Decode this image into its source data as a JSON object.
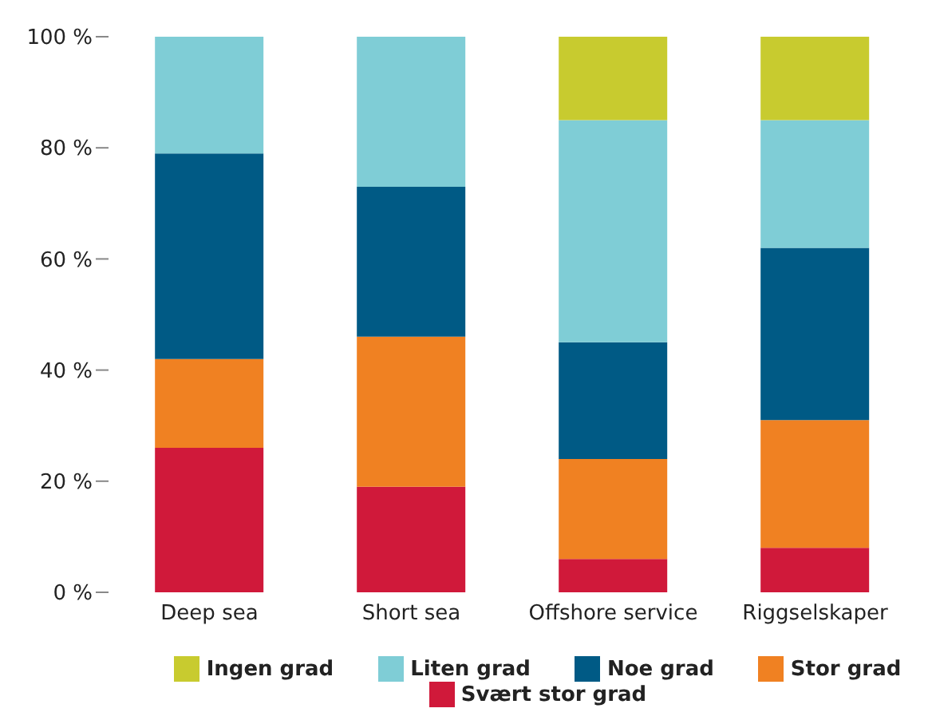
{
  "chart_data": {
    "type": "bar",
    "stacked": true,
    "categories": [
      "Deep sea",
      "Short sea",
      "Offshore service",
      "Riggselskaper"
    ],
    "series": [
      {
        "name": "Svært stor grad",
        "color": "#d0193a",
        "values": [
          26,
          19,
          6,
          8
        ]
      },
      {
        "name": "Stor grad",
        "color": "#f08122",
        "values": [
          16,
          27,
          18,
          23
        ]
      },
      {
        "name": "Noe grad",
        "color": "#005a85",
        "values": [
          37,
          27,
          21,
          31
        ]
      },
      {
        "name": "Liten grad",
        "color": "#7fcdd6",
        "values": [
          21,
          27,
          40,
          23
        ]
      },
      {
        "name": "Ingen grad",
        "color": "#c8cb2f",
        "values": [
          0,
          0,
          15,
          15
        ]
      }
    ],
    "ylim": [
      0,
      100
    ],
    "yticks": [
      {
        "value": 0,
        "label": "0 %"
      },
      {
        "value": 20,
        "label": "20 %"
      },
      {
        "value": 40,
        "label": "40 %"
      },
      {
        "value": 60,
        "label": "60 %"
      },
      {
        "value": 80,
        "label": "80 %"
      },
      {
        "value": 100,
        "label": "100 %"
      }
    ],
    "grid": false,
    "legend": "bottom"
  }
}
